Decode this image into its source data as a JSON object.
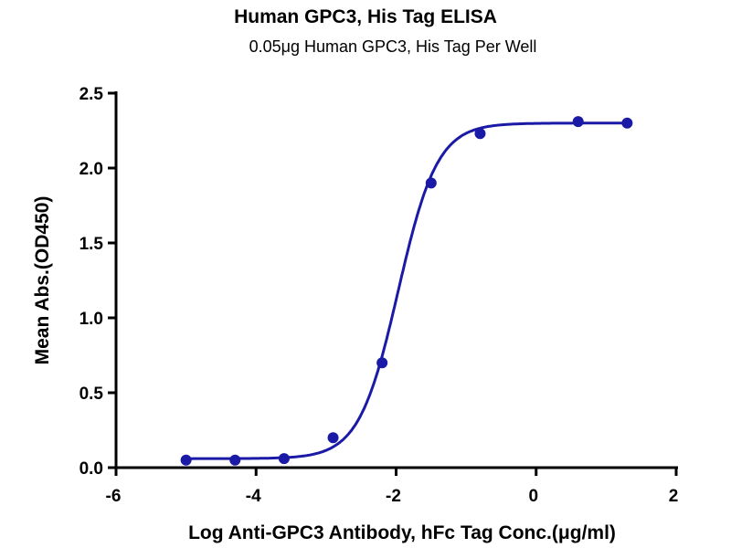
{
  "chart_data": {
    "type": "scatter",
    "title": "Human GPC3, His Tag ELISA",
    "subtitle": "0.05μg Human GPC3, His Tag Per Well",
    "xlabel": "Log Anti-GPC3 Antibody, hFc Tag Conc.(μg/ml)",
    "ylabel": "Mean Abs.(OD450)",
    "xlim": [
      -6,
      2
    ],
    "ylim": [
      0,
      2.5
    ],
    "xticks": [
      -6,
      -4,
      -2,
      0,
      2
    ],
    "xtick_labels": [
      "-6",
      "-4",
      "-2",
      "0",
      "2"
    ],
    "yticks": [
      0,
      0.5,
      1,
      1.5,
      2,
      2.5
    ],
    "ytick_labels": [
      "0.0",
      "0.5",
      "1.0",
      "1.5",
      "2.0",
      "2.5"
    ],
    "grid": false,
    "color": "#1a1aa6",
    "series": [
      {
        "name": "Human GPC3, His Tag",
        "x": [
          -5.0,
          -4.3,
          -3.6,
          -2.9,
          -2.2,
          -1.5,
          -0.8,
          0.6,
          1.3
        ],
        "y": [
          0.05,
          0.05,
          0.06,
          0.2,
          0.7,
          1.9,
          2.23,
          2.31,
          2.3
        ],
        "fit": {
          "model": "4PL",
          "bottom": 0.06,
          "top": 2.3,
          "logEC50": -1.97,
          "hill": 1.55
        }
      }
    ]
  }
}
